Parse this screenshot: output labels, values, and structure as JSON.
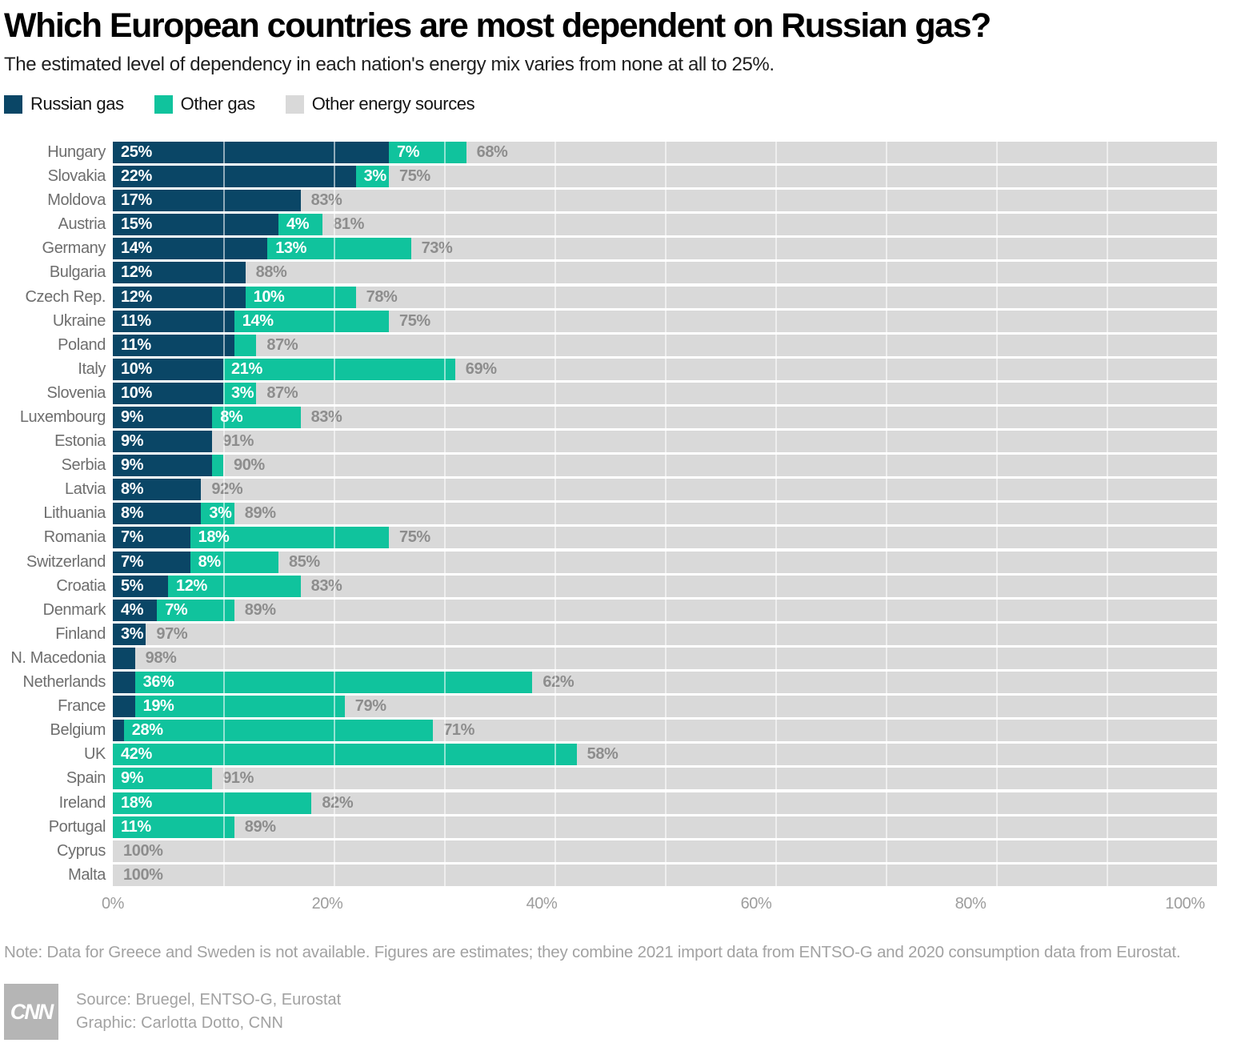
{
  "header": {
    "title": "Which European countries are most dependent on Russian gas?",
    "subtitle": "The estimated level of dependency in each nation's energy mix varies from none at all to 25%."
  },
  "chart_data": {
    "type": "bar",
    "orientation": "horizontal-stacked",
    "categories": [
      "Hungary",
      "Slovakia",
      "Moldova",
      "Austria",
      "Germany",
      "Bulgaria",
      "Czech Rep.",
      "Ukraine",
      "Poland",
      "Italy",
      "Slovenia",
      "Luxembourg",
      "Estonia",
      "Serbia",
      "Latvia",
      "Lithuania",
      "Romania",
      "Switzerland",
      "Croatia",
      "Denmark",
      "Finland",
      "N. Macedonia",
      "Netherlands",
      "France",
      "Belgium",
      "UK",
      "Spain",
      "Ireland",
      "Portugal",
      "Cyprus",
      "Malta"
    ],
    "series": [
      {
        "key": "russian-gas",
        "name": "Russian gas",
        "color": "#0a4666",
        "label_style": "light",
        "values": [
          25,
          22,
          17,
          15,
          14,
          12,
          12,
          11,
          11,
          10,
          10,
          9,
          9,
          9,
          8,
          8,
          7,
          7,
          5,
          4,
          3,
          2,
          2,
          2,
          1,
          0,
          0,
          0,
          0,
          0,
          0
        ]
      },
      {
        "key": "other-gas",
        "name": "Other gas",
        "color": "#10c39d",
        "label_style": "light",
        "values": [
          7,
          3,
          0,
          4,
          13,
          0,
          10,
          14,
          2,
          21,
          3,
          8,
          0,
          1,
          0,
          3,
          18,
          8,
          12,
          7,
          0,
          0,
          36,
          19,
          28,
          42,
          9,
          18,
          11,
          0,
          0
        ]
      },
      {
        "key": "other-energy",
        "name": "Other energy sources",
        "color": "#d9d9d9",
        "label_style": "dark",
        "values": [
          68,
          75,
          83,
          81,
          73,
          88,
          78,
          75,
          87,
          69,
          87,
          83,
          91,
          90,
          92,
          89,
          75,
          85,
          83,
          89,
          97,
          98,
          62,
          79,
          71,
          58,
          91,
          82,
          89,
          100,
          100
        ]
      }
    ],
    "label_min_display": 3,
    "value_suffix": "%",
    "x_axis": {
      "range": [
        0,
        100
      ],
      "ticks": [
        "0%",
        "20%",
        "40%",
        "60%",
        "80%",
        "100%"
      ],
      "gridline_step_percent": 10
    },
    "title": "Which European countries are most dependent on Russian gas?",
    "xlabel": "",
    "ylabel": ""
  },
  "note": "Note: Data for Greece and Sweden is not available. Figures are estimates; they combine 2021 import data from ENTSO-G and 2020 consumption data from Eurostat.",
  "footer": {
    "logo_text": "CNN",
    "source": "Source: Bruegel, ENTSO-G, Eurostat",
    "credit": "Graphic: Carlotta Dotto, CNN"
  }
}
